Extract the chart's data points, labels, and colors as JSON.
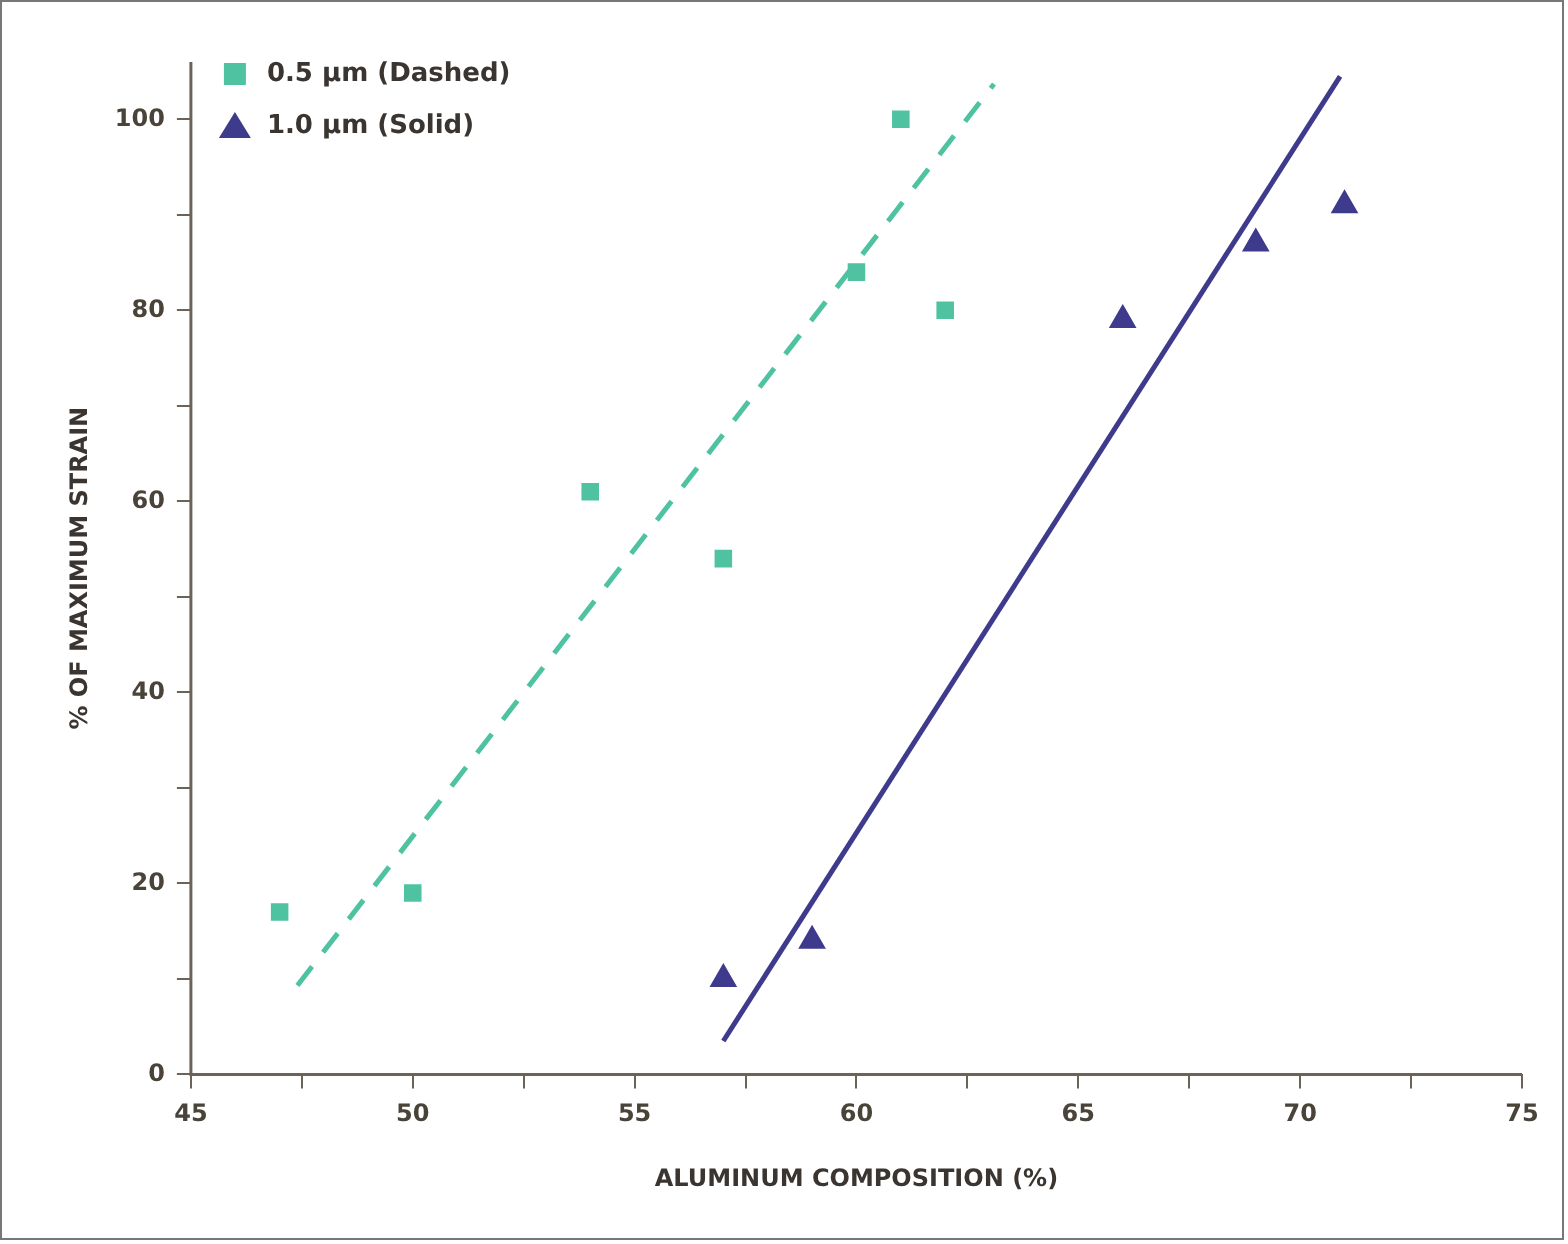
{
  "chart_data": {
    "type": "scatter",
    "xlabel": "ALUMINUM COMPOSITION (%)",
    "ylabel": "% OF MAXIMUM STRAIN",
    "xlim": [
      45,
      75
    ],
    "xticks": [
      45,
      {
        "value": 47.5,
        "label": null
      },
      50,
      {
        "value": 52.5,
        "label": null
      },
      55,
      {
        "value": 57.5,
        "label": null
      },
      60,
      {
        "value": 62.5,
        "label": null
      },
      65,
      {
        "value": 67.5,
        "label": null
      },
      70,
      {
        "value": 72.5,
        "label": null
      },
      75
    ],
    "ylim": [
      0,
      106
    ],
    "yticks": [
      0,
      {
        "value": 10,
        "label": null
      },
      20,
      {
        "value": 30,
        "label": null
      },
      40,
      {
        "value": 50,
        "label": null
      },
      60,
      {
        "value": 70,
        "label": null
      },
      80,
      {
        "value": 90,
        "label": null
      },
      100
    ],
    "grid": false,
    "legend": "top left",
    "series": [
      {
        "name": "0.5 µm (Dashed)",
        "marker": "square",
        "color": "#4fc3a1",
        "x": [
          47,
          50,
          54,
          57,
          60,
          61,
          62
        ],
        "values": [
          17,
          19,
          61,
          54,
          84,
          100,
          80
        ]
      },
      {
        "name": "1.0 µm (Solid)",
        "marker": "triangle",
        "color": "#3e3a8c",
        "x": [
          57,
          59,
          66,
          69,
          71
        ],
        "values": [
          10,
          14,
          79,
          87,
          91
        ]
      },
      {
        "type": "line",
        "marker": "none",
        "line_style": "dashed",
        "color": "#4fc3a1",
        "x": [
          47.4,
          63.1
        ],
        "values": [
          9.3,
          103.7
        ]
      },
      {
        "type": "line",
        "marker": "none",
        "line_style": "solid",
        "color": "#3e3a8c",
        "x": [
          57,
          70.9
        ],
        "values": [
          3.5,
          104.5
        ]
      }
    ]
  }
}
